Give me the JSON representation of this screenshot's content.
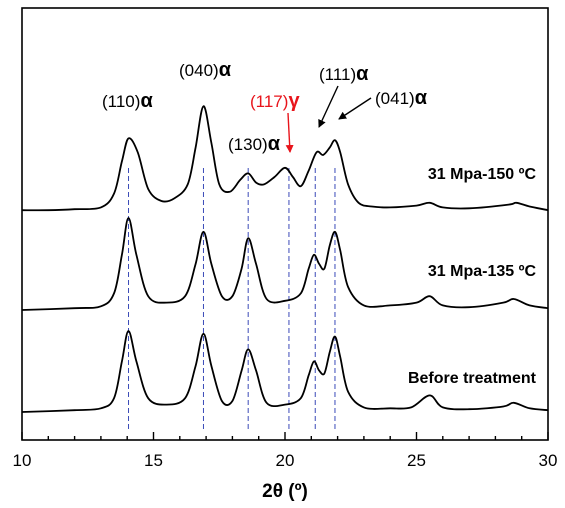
{
  "chart_data": {
    "type": "line",
    "xlabel": "2θ (º)",
    "xlim": [
      10,
      30
    ],
    "xticks": [
      10,
      15,
      20,
      25,
      30
    ],
    "y_ticks_shown": false,
    "grid": false,
    "series": [
      {
        "name": "31 Mpa-150 ºC",
        "base": 0.0,
        "points": [
          [
            10,
            0.02
          ],
          [
            11,
            0.02
          ],
          [
            12,
            0.03
          ],
          [
            13,
            0.05
          ],
          [
            13.5,
            0.2
          ],
          [
            13.8,
            0.55
          ],
          [
            14.05,
            0.8
          ],
          [
            14.4,
            0.65
          ],
          [
            14.8,
            0.25
          ],
          [
            15.3,
            0.12
          ],
          [
            15.8,
            0.15
          ],
          [
            16.3,
            0.3
          ],
          [
            16.6,
            0.7
          ],
          [
            16.9,
            1.15
          ],
          [
            17.2,
            0.75
          ],
          [
            17.5,
            0.3
          ],
          [
            17.9,
            0.22
          ],
          [
            18.3,
            0.35
          ],
          [
            18.6,
            0.42
          ],
          [
            18.9,
            0.32
          ],
          [
            19.2,
            0.3
          ],
          [
            19.6,
            0.38
          ],
          [
            20.0,
            0.48
          ],
          [
            20.3,
            0.38
          ],
          [
            20.6,
            0.28
          ],
          [
            20.9,
            0.45
          ],
          [
            21.2,
            0.65
          ],
          [
            21.45,
            0.62
          ],
          [
            21.7,
            0.7
          ],
          [
            21.9,
            0.78
          ],
          [
            22.1,
            0.65
          ],
          [
            22.4,
            0.3
          ],
          [
            22.8,
            0.1
          ],
          [
            23.3,
            0.06
          ],
          [
            24,
            0.05
          ],
          [
            25,
            0.07
          ],
          [
            25.5,
            0.1
          ],
          [
            26,
            0.05
          ],
          [
            27,
            0.04
          ],
          [
            28.5,
            0.08
          ],
          [
            28.8,
            0.1
          ],
          [
            29.3,
            0.06
          ],
          [
            30,
            0.02
          ]
        ]
      },
      {
        "name": "31 Mpa-135 ºC",
        "base": -1.0,
        "points": [
          [
            10,
            0.0
          ],
          [
            12,
            0.02
          ],
          [
            13,
            0.04
          ],
          [
            13.5,
            0.18
          ],
          [
            13.8,
            0.6
          ],
          [
            14.05,
            1.0
          ],
          [
            14.35,
            0.6
          ],
          [
            14.8,
            0.15
          ],
          [
            15.5,
            0.08
          ],
          [
            16.2,
            0.15
          ],
          [
            16.6,
            0.5
          ],
          [
            16.9,
            0.85
          ],
          [
            17.2,
            0.5
          ],
          [
            17.6,
            0.15
          ],
          [
            18.0,
            0.15
          ],
          [
            18.35,
            0.45
          ],
          [
            18.6,
            0.78
          ],
          [
            18.9,
            0.5
          ],
          [
            19.3,
            0.12
          ],
          [
            20,
            0.1
          ],
          [
            20.6,
            0.18
          ],
          [
            20.9,
            0.45
          ],
          [
            21.1,
            0.6
          ],
          [
            21.3,
            0.5
          ],
          [
            21.5,
            0.45
          ],
          [
            21.7,
            0.7
          ],
          [
            21.9,
            0.85
          ],
          [
            22.1,
            0.65
          ],
          [
            22.4,
            0.25
          ],
          [
            23,
            0.05
          ],
          [
            24,
            0.05
          ],
          [
            25,
            0.08
          ],
          [
            25.5,
            0.15
          ],
          [
            26,
            0.05
          ],
          [
            27,
            0.03
          ],
          [
            28.3,
            0.08
          ],
          [
            28.7,
            0.12
          ],
          [
            29.3,
            0.05
          ],
          [
            30,
            0.02
          ]
        ]
      },
      {
        "name": "Before treatment",
        "base": -2.0,
        "points": [
          [
            10,
            0.0
          ],
          [
            12,
            0.02
          ],
          [
            13,
            0.04
          ],
          [
            13.5,
            0.15
          ],
          [
            13.8,
            0.55
          ],
          [
            14.05,
            0.88
          ],
          [
            14.35,
            0.55
          ],
          [
            14.8,
            0.15
          ],
          [
            15.5,
            0.08
          ],
          [
            16.2,
            0.15
          ],
          [
            16.6,
            0.5
          ],
          [
            16.9,
            0.85
          ],
          [
            17.2,
            0.5
          ],
          [
            17.6,
            0.12
          ],
          [
            18.0,
            0.12
          ],
          [
            18.35,
            0.45
          ],
          [
            18.6,
            0.68
          ],
          [
            18.9,
            0.45
          ],
          [
            19.3,
            0.1
          ],
          [
            20,
            0.08
          ],
          [
            20.6,
            0.15
          ],
          [
            20.9,
            0.4
          ],
          [
            21.1,
            0.55
          ],
          [
            21.3,
            0.45
          ],
          [
            21.5,
            0.42
          ],
          [
            21.7,
            0.65
          ],
          [
            21.9,
            0.82
          ],
          [
            22.1,
            0.6
          ],
          [
            22.4,
            0.22
          ],
          [
            23,
            0.05
          ],
          [
            24,
            0.04
          ],
          [
            24.8,
            0.05
          ],
          [
            25.5,
            0.18
          ],
          [
            26,
            0.05
          ],
          [
            27,
            0.03
          ],
          [
            28.3,
            0.06
          ],
          [
            28.7,
            0.1
          ],
          [
            29.3,
            0.04
          ],
          [
            30,
            0.02
          ]
        ]
      }
    ],
    "reference_lines_x": [
      14.05,
      16.9,
      18.6,
      20.15,
      21.15,
      21.9
    ],
    "peak_labels": [
      {
        "plane": "(110)",
        "phase": "α",
        "x": 14.05,
        "arrow": false
      },
      {
        "plane": "(040)",
        "phase": "α",
        "x": 16.9,
        "arrow": false
      },
      {
        "plane": "(130)",
        "phase": "α",
        "x": 18.6,
        "arrow": false
      },
      {
        "plane": "(117)",
        "phase": "γ",
        "x": 20.15,
        "arrow": true,
        "color": "#e8141b"
      },
      {
        "plane": "(111)",
        "phase": "α",
        "x": 21.45,
        "arrow": true
      },
      {
        "plane": "(041)",
        "phase": "α",
        "x": 21.9,
        "arrow": true
      }
    ],
    "colors": {
      "curve": "#000000",
      "reference_line": "#3b4bb8",
      "highlight": "#e8141b"
    }
  }
}
